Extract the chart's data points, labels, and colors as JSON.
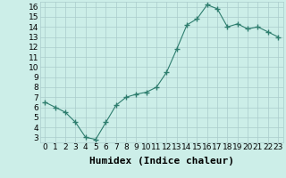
{
  "x": [
    0,
    1,
    2,
    3,
    4,
    5,
    6,
    7,
    8,
    9,
    10,
    11,
    12,
    13,
    14,
    15,
    16,
    17,
    18,
    19,
    20,
    21,
    22,
    23
  ],
  "y": [
    6.5,
    6.0,
    5.5,
    4.5,
    3.0,
    2.8,
    4.5,
    6.2,
    7.0,
    7.3,
    7.5,
    8.0,
    9.5,
    11.8,
    14.2,
    14.8,
    16.2,
    15.8,
    14.0,
    14.3,
    13.8,
    14.0,
    13.5,
    13.0
  ],
  "line_color": "#2e7d6e",
  "marker": "+",
  "marker_size": 4,
  "bg_color": "#cceee8",
  "grid_color": "#aacccc",
  "xlabel": "Humidex (Indice chaleur)",
  "xlim": [
    -0.5,
    23.5
  ],
  "ylim": [
    2.5,
    16.5
  ],
  "yticks": [
    3,
    4,
    5,
    6,
    7,
    8,
    9,
    10,
    11,
    12,
    13,
    14,
    15,
    16
  ],
  "xticks": [
    0,
    1,
    2,
    3,
    4,
    5,
    6,
    7,
    8,
    9,
    10,
    11,
    12,
    13,
    14,
    15,
    16,
    17,
    18,
    19,
    20,
    21,
    22,
    23
  ],
  "xtick_labels": [
    "0",
    "1",
    "2",
    "3",
    "4",
    "5",
    "6",
    "7",
    "8",
    "9",
    "10",
    "11",
    "12",
    "13",
    "14",
    "15",
    "16",
    "17",
    "18",
    "19",
    "20",
    "21",
    "22",
    "23"
  ],
  "tick_fontsize": 6.5,
  "xlabel_fontsize": 8
}
